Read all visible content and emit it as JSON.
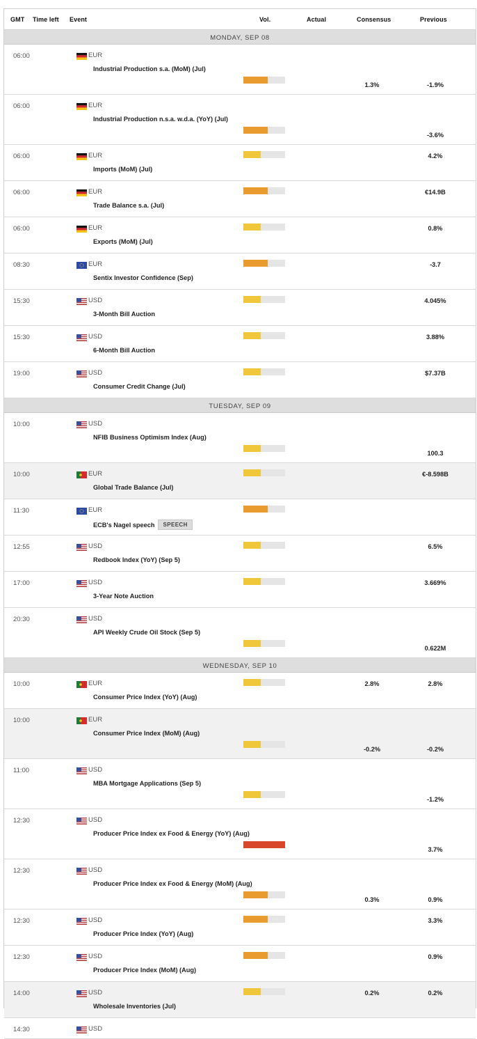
{
  "header": {
    "gmt": "GMT",
    "time_left": "Time left",
    "event": "Event",
    "vol": "Vol.",
    "actual": "Actual",
    "consensus": "Consensus",
    "previous": "Previous"
  },
  "colors": {
    "low": "#f0c73a",
    "medium": "#e99b2f",
    "high": "#d9472b",
    "track": "#e5e5e5"
  },
  "rows": [
    {
      "kind": "day",
      "label": "MONDAY, SEP 08"
    },
    {
      "kind": "event",
      "time": "06:00",
      "flag": "de-flag-icon",
      "currency": "EUR",
      "name": "Industrial Production s.a. (MoM) (Jul)",
      "volatility": "medium",
      "actual": "",
      "consensus": "1.3%",
      "previous": "-1.9%",
      "tall": true
    },
    {
      "kind": "event",
      "time": "06:00",
      "flag": "de-flag-icon",
      "currency": "EUR",
      "name": "Industrial Production n.s.a. w.d.a. (YoY) (Jul)",
      "volatility": "medium",
      "actual": "",
      "consensus": "",
      "previous": "-3.6%",
      "tall": true
    },
    {
      "kind": "event",
      "time": "06:00",
      "flag": "de-flag-icon",
      "currency": "EUR",
      "name": "Imports (MoM) (Jul)",
      "volatility": "low",
      "actual": "",
      "consensus": "",
      "previous": "4.2%"
    },
    {
      "kind": "event",
      "time": "06:00",
      "flag": "de-flag-icon",
      "currency": "EUR",
      "name": "Trade Balance s.a. (Jul)",
      "volatility": "medium",
      "actual": "",
      "consensus": "",
      "previous": "€14.9B"
    },
    {
      "kind": "event",
      "time": "06:00",
      "flag": "de-flag-icon",
      "currency": "EUR",
      "name": "Exports (MoM) (Jul)",
      "volatility": "low",
      "actual": "",
      "consensus": "",
      "previous": "0.8%"
    },
    {
      "kind": "event",
      "time": "08:30",
      "flag": "eu-flag-icon",
      "currency": "EUR",
      "name": "Sentix Investor Confidence (Sep)",
      "volatility": "medium",
      "actual": "",
      "consensus": "",
      "previous": "-3.7"
    },
    {
      "kind": "event",
      "time": "15:30",
      "flag": "us-flag-icon",
      "currency": "USD",
      "name": "3-Month Bill Auction",
      "volatility": "low",
      "actual": "",
      "consensus": "",
      "previous": "4.045%"
    },
    {
      "kind": "event",
      "time": "15:30",
      "flag": "us-flag-icon",
      "currency": "USD",
      "name": "6-Month Bill Auction",
      "volatility": "low",
      "actual": "",
      "consensus": "",
      "previous": "3.88%"
    },
    {
      "kind": "event",
      "time": "19:00",
      "flag": "us-flag-icon",
      "currency": "USD",
      "name": "Consumer Credit Change (Jul)",
      "volatility": "low",
      "actual": "",
      "consensus": "",
      "previous": "$7.37B"
    },
    {
      "kind": "day",
      "label": "TUESDAY, SEP 09"
    },
    {
      "kind": "event",
      "time": "10:00",
      "flag": "us-flag-icon",
      "currency": "USD",
      "name": "NFIB Business Optimism Index (Aug)",
      "volatility": "low",
      "actual": "",
      "consensus": "",
      "previous": "100.3",
      "tall": true
    },
    {
      "kind": "event",
      "time": "10:00",
      "flag": "pt-flag-icon",
      "currency": "EUR",
      "name": "Global Trade Balance (Jul)",
      "volatility": "low",
      "actual": "",
      "consensus": "",
      "previous": "€-8.598B",
      "shaded": true
    },
    {
      "kind": "event",
      "time": "11:30",
      "flag": "eu-flag-icon",
      "currency": "EUR",
      "name": "ECB's Nagel speech",
      "badge": "SPEECH",
      "volatility": "medium",
      "actual": "",
      "consensus": "",
      "previous": ""
    },
    {
      "kind": "event",
      "time": "12:55",
      "flag": "us-flag-icon",
      "currency": "USD",
      "name": "Redbook Index (YoY) (Sep 5)",
      "volatility": "low",
      "actual": "",
      "consensus": "",
      "previous": "6.5%"
    },
    {
      "kind": "event",
      "time": "17:00",
      "flag": "us-flag-icon",
      "currency": "USD",
      "name": "3-Year Note Auction",
      "volatility": "low",
      "actual": "",
      "consensus": "",
      "previous": "3.669%"
    },
    {
      "kind": "event",
      "time": "20:30",
      "flag": "us-flag-icon",
      "currency": "USD",
      "name": "API Weekly Crude Oil Stock (Sep 5)",
      "volatility": "low",
      "actual": "",
      "consensus": "",
      "previous": "0.622M",
      "tall": true
    },
    {
      "kind": "day",
      "label": "WEDNESDAY, SEP 10"
    },
    {
      "kind": "event",
      "time": "10:00",
      "flag": "pt-flag-icon",
      "currency": "EUR",
      "name": "Consumer Price Index (YoY) (Aug)",
      "volatility": "low",
      "actual": "",
      "consensus": "2.8%",
      "previous": "2.8%"
    },
    {
      "kind": "event",
      "time": "10:00",
      "flag": "pt-flag-icon",
      "currency": "EUR",
      "name": "Consumer Price Index (MoM) (Aug)",
      "volatility": "low",
      "actual": "",
      "consensus": "-0.2%",
      "previous": "-0.2%",
      "tall": true,
      "shaded": true
    },
    {
      "kind": "event",
      "time": "11:00",
      "flag": "us-flag-icon",
      "currency": "USD",
      "name": "MBA Mortgage Applications (Sep 5)",
      "volatility": "low",
      "actual": "",
      "consensus": "",
      "previous": "-1.2%",
      "tall": true
    },
    {
      "kind": "event",
      "time": "12:30",
      "flag": "us-flag-icon",
      "currency": "USD",
      "name": "Producer Price Index ex Food & Energy (YoY) (Aug)",
      "volatility": "high",
      "actual": "",
      "consensus": "",
      "previous": "3.7%",
      "tall": true
    },
    {
      "kind": "event",
      "time": "12:30",
      "flag": "us-flag-icon",
      "currency": "USD",
      "name": "Producer Price Index ex Food & Energy (MoM) (Aug)",
      "volatility": "medium",
      "actual": "",
      "consensus": "0.3%",
      "previous": "0.9%",
      "tall": true
    },
    {
      "kind": "event",
      "time": "12:30",
      "flag": "us-flag-icon",
      "currency": "USD",
      "name": "Producer Price Index (YoY) (Aug)",
      "volatility": "medium",
      "actual": "",
      "consensus": "",
      "previous": "3.3%"
    },
    {
      "kind": "event",
      "time": "12:30",
      "flag": "us-flag-icon",
      "currency": "USD",
      "name": "Producer Price Index (MoM) (Aug)",
      "volatility": "medium",
      "actual": "",
      "consensus": "",
      "previous": "0.9%"
    },
    {
      "kind": "event",
      "time": "14:00",
      "flag": "us-flag-icon",
      "currency": "USD",
      "name": "Wholesale Inventories (Jul)",
      "volatility": "low",
      "actual": "",
      "consensus": "0.2%",
      "previous": "0.2%",
      "shaded": true
    },
    {
      "kind": "event",
      "time": "14:30",
      "flag": "us-flag-icon",
      "currency": "USD",
      "name": "",
      "volatility": "",
      "actual": "",
      "consensus": "",
      "previous": "",
      "partial": true
    }
  ]
}
